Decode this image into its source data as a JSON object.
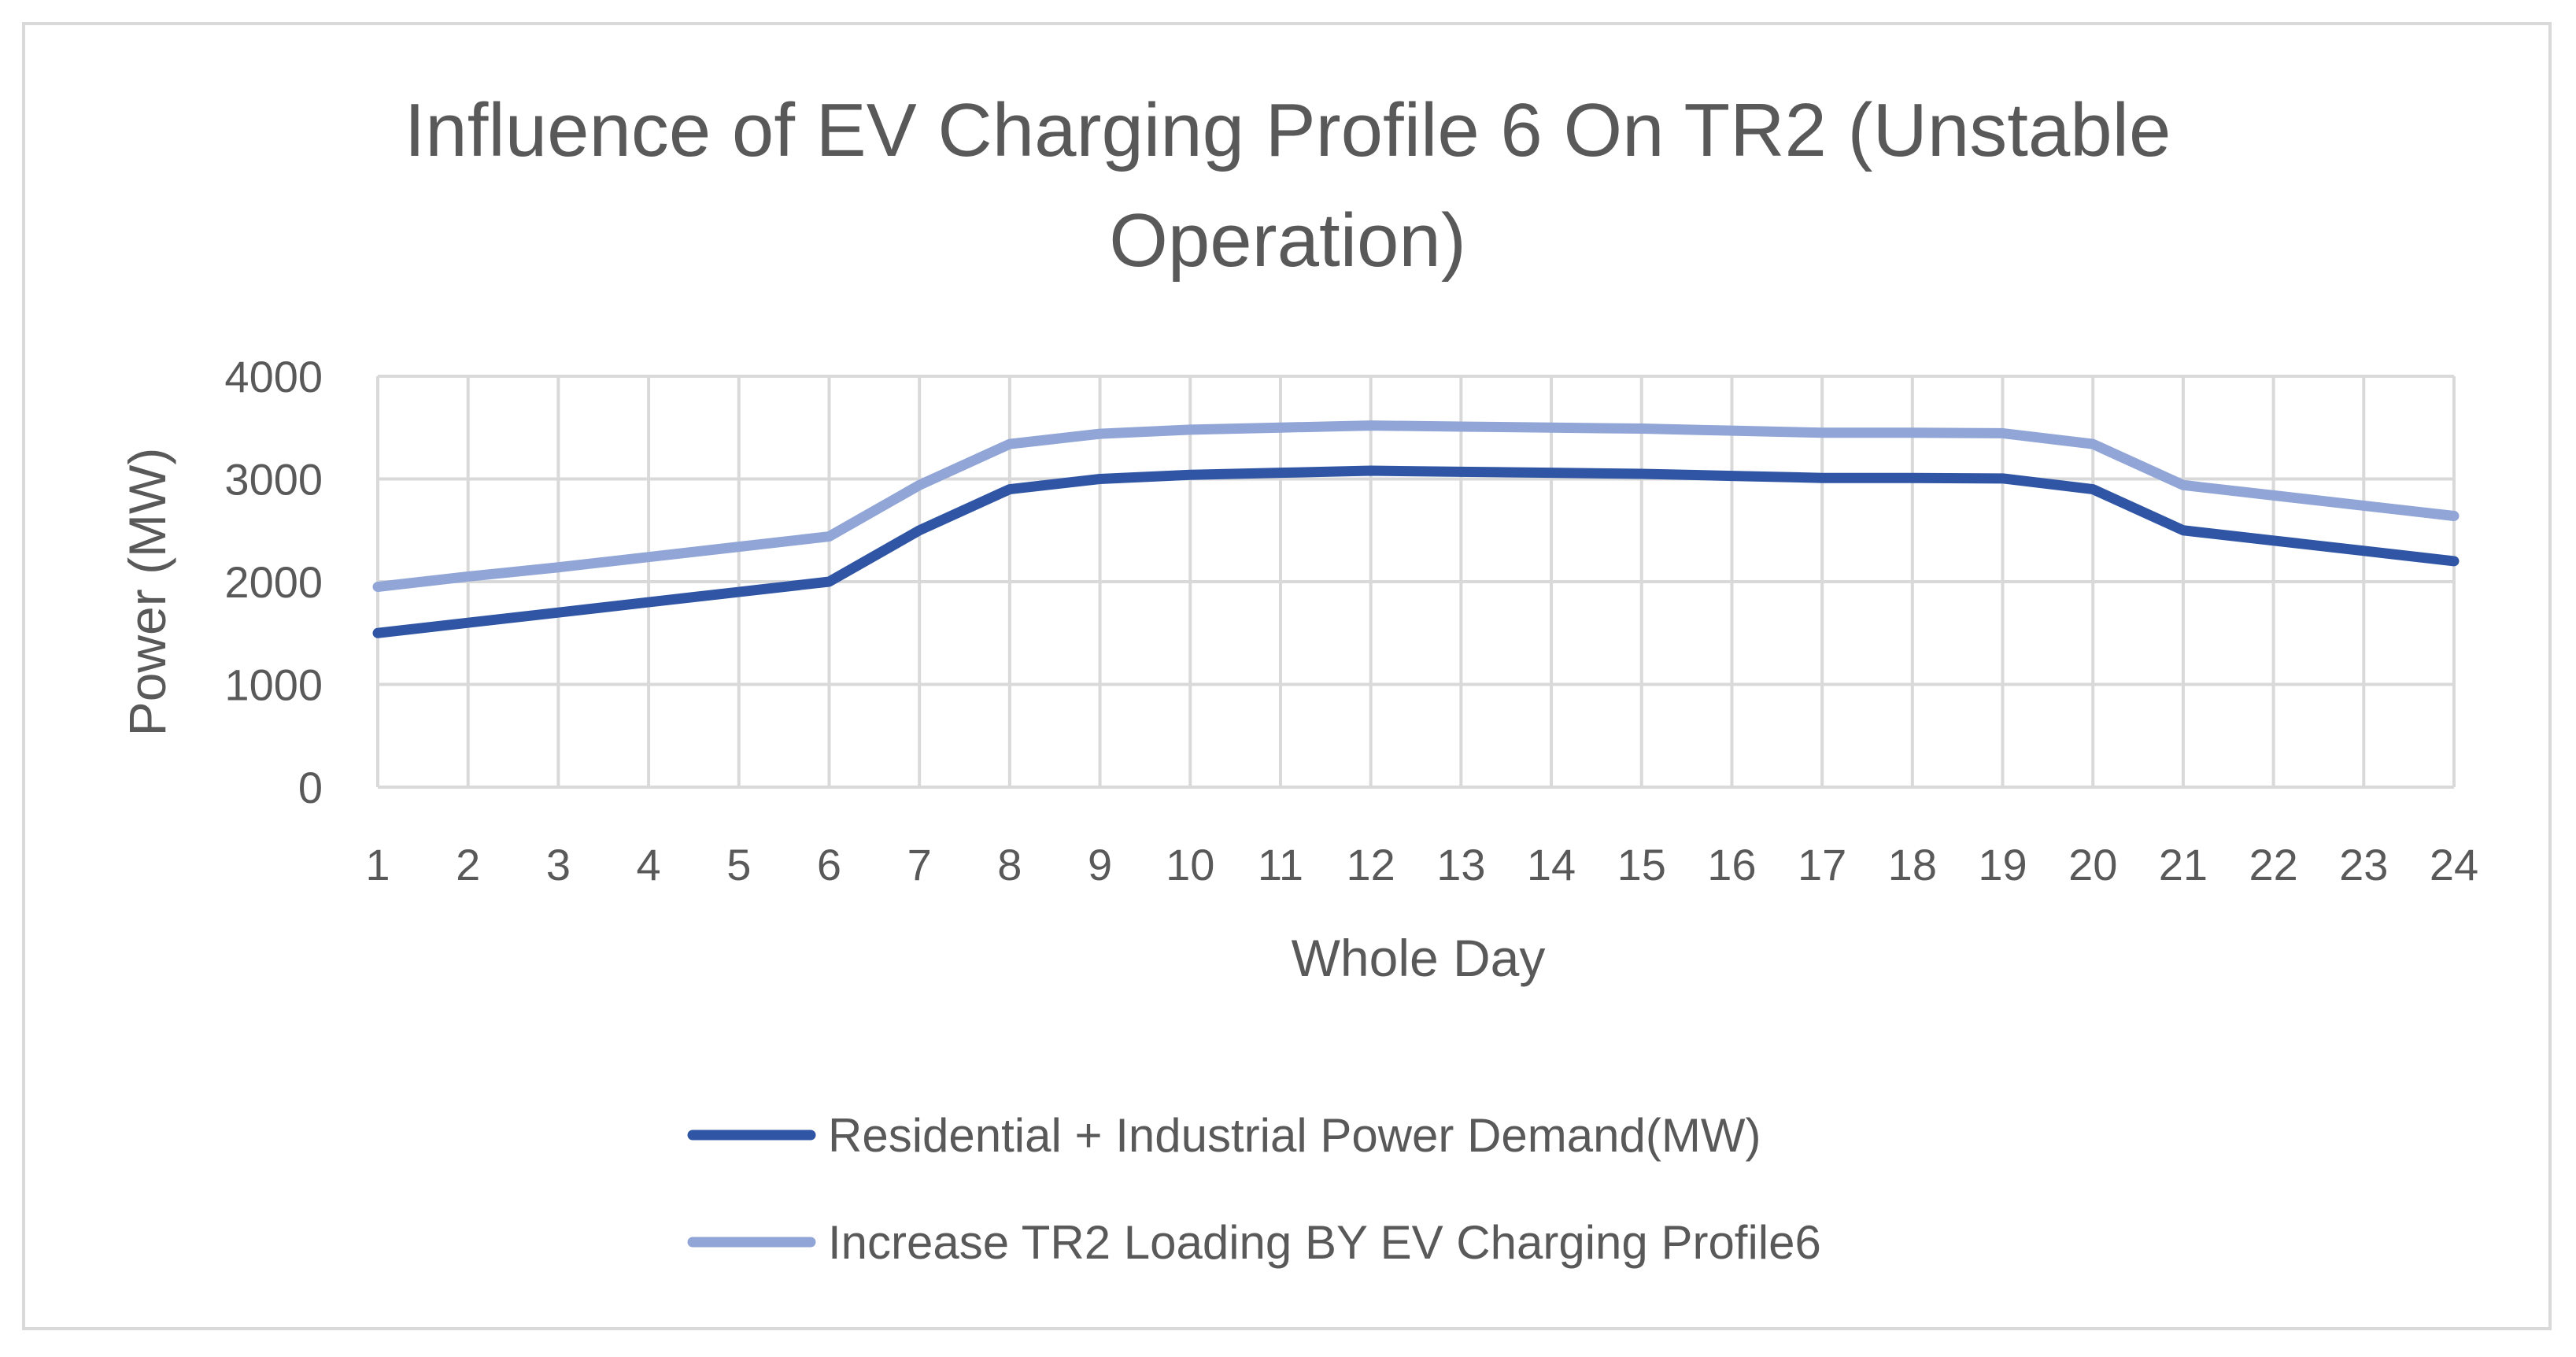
{
  "chart_data": {
    "type": "line",
    "title_lines": [
      "Influence of EV Charging Profile 6 On TR2 (Unstable",
      "Operation)"
    ],
    "xlabel": "Whole Day",
    "ylabel": "Power (MW)",
    "x": [
      "1",
      "2",
      "3",
      "4",
      "5",
      "6",
      "7",
      "8",
      "9",
      "10",
      "11",
      "12",
      "13",
      "14",
      "15",
      "16",
      "17",
      "18",
      "19",
      "20",
      "21",
      "22",
      "23",
      "24"
    ],
    "yticks": [
      "0",
      "1000",
      "2000",
      "3000",
      "4000"
    ],
    "ylim": [
      0,
      4000
    ],
    "grid": true,
    "legend_position": "bottom",
    "series": [
      {
        "name": "Residential + Industrial Power Demand(MW)",
        "color": "#2f55a4",
        "values": [
          1500,
          1600,
          1700,
          1800,
          1900,
          2000,
          2500,
          2900,
          3000,
          3040,
          3060,
          3080,
          3070,
          3060,
          3050,
          3030,
          3010,
          3010,
          3005,
          2900,
          2500,
          2400,
          2300,
          2200
        ]
      },
      {
        "name": "Increase TR2 Loading BY EV Charging Profile6",
        "color": "#91a6d6",
        "values": [
          1950,
          2050,
          2140,
          2240,
          2340,
          2440,
          2940,
          3340,
          3440,
          3480,
          3500,
          3520,
          3510,
          3500,
          3490,
          3470,
          3450,
          3450,
          3445,
          3340,
          2940,
          2840,
          2740,
          2640
        ]
      }
    ]
  },
  "colors": {
    "grid": "#d9d9d9",
    "text": "#595959",
    "frame": "#d9d9d9"
  }
}
